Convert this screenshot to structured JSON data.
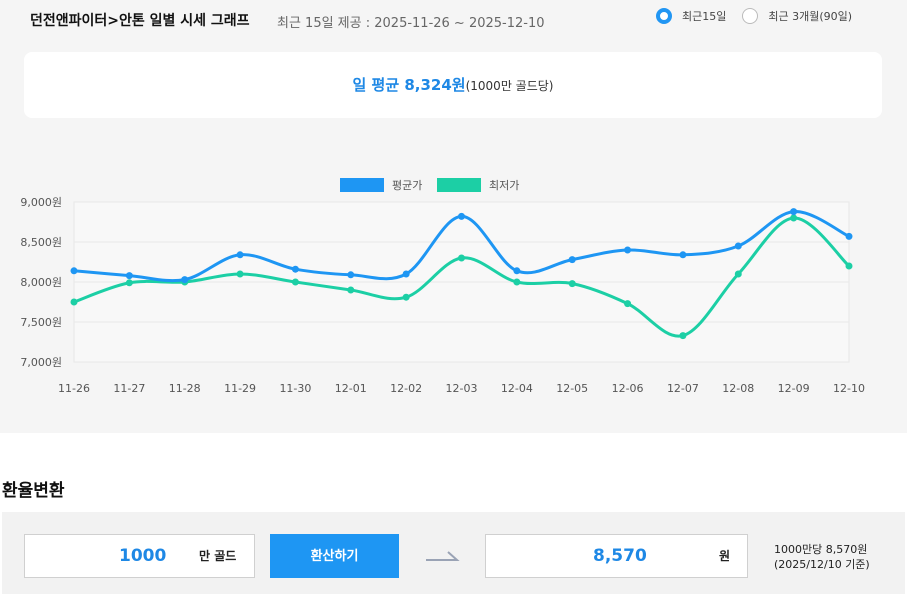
{
  "header": {
    "title": "던전앤파이터>안톤 일별 시세 그래프",
    "subtitle": "최근 15일 제공 : 2025-11-26 ~ 2025-12-10",
    "options": [
      {
        "label": "최근15일",
        "selected": true
      },
      {
        "label": "최근 3개월(90일)",
        "selected": false
      }
    ]
  },
  "average": {
    "main": "일 평균 8,324원",
    "unit_note": "(1000만 골드당)"
  },
  "chart_data": {
    "type": "line",
    "categories": [
      "11-26",
      "11-27",
      "11-28",
      "11-29",
      "11-30",
      "12-01",
      "12-02",
      "12-03",
      "12-04",
      "12-05",
      "12-06",
      "12-07",
      "12-08",
      "12-09",
      "12-10"
    ],
    "series": [
      {
        "name": "평균가",
        "color": "#1e96f3",
        "values": [
          8140,
          8080,
          8030,
          8340,
          8160,
          8090,
          8100,
          8820,
          8140,
          8280,
          8400,
          8340,
          8450,
          8880,
          8570
        ]
      },
      {
        "name": "최저가",
        "color": "#1ccfa5",
        "values": [
          7750,
          7990,
          8000,
          8100,
          8000,
          7900,
          7810,
          8300,
          8000,
          7980,
          7730,
          7330,
          8100,
          8800,
          8200
        ]
      }
    ],
    "y_ticks": [
      "9,000원",
      "8,500원",
      "8,000원",
      "7,500원",
      "7,000원"
    ],
    "ylim": [
      7000,
      9000
    ],
    "legend_position": "top-center",
    "grid": true
  },
  "converter": {
    "section_title": "환율변환",
    "input_value": "1000",
    "input_unit": "만 골드",
    "button_label": "환산하기",
    "result_value": "8,570",
    "result_unit": "원",
    "note_line1": "1000만당 8,570원",
    "note_line2": "(2025/12/10 기준)"
  }
}
